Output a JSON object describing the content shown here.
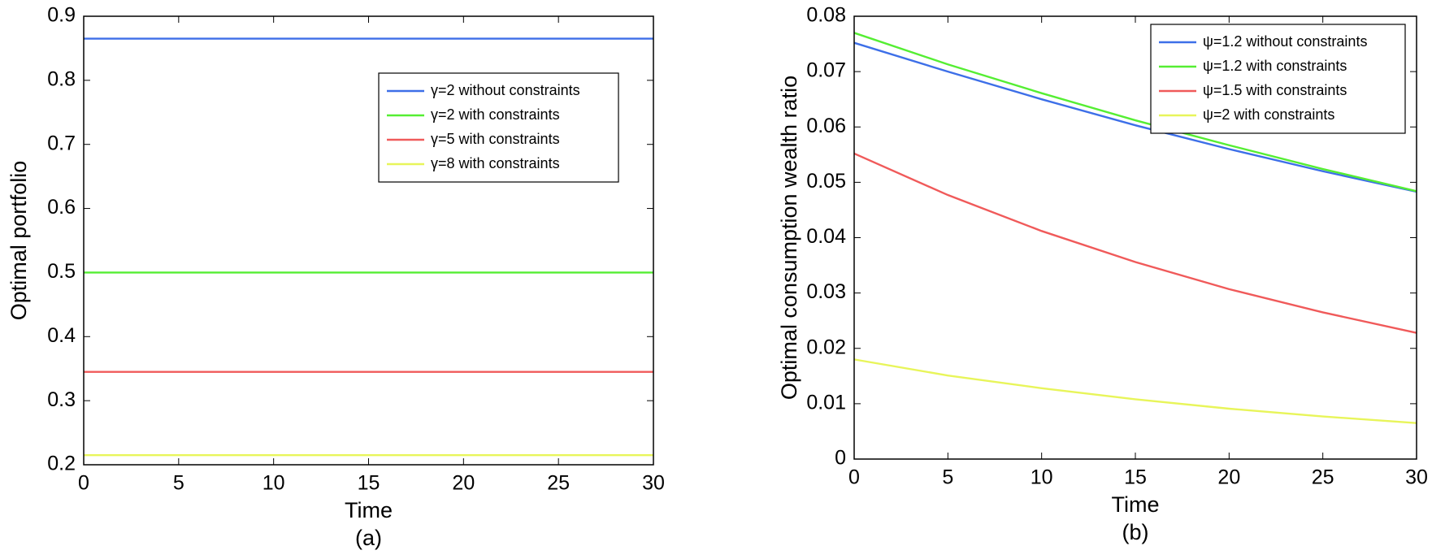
{
  "chart_data": [
    {
      "type": "line",
      "xlabel": "Time",
      "ylabel": "Optimal portfolio",
      "caption": "(a)",
      "x": [
        0,
        5,
        10,
        15,
        20,
        25,
        30
      ],
      "series": [
        {
          "name": "γ=2 without constraints",
          "color": "#3d6fe8",
          "values": [
            0.865,
            0.865,
            0.865,
            0.865,
            0.865,
            0.865,
            0.865
          ]
        },
        {
          "name": "γ=2 with constraints",
          "color": "#55ee33",
          "values": [
            0.5,
            0.5,
            0.5,
            0.5,
            0.5,
            0.5,
            0.5
          ]
        },
        {
          "name": "γ=5 with constraints",
          "color": "#f05a5a",
          "values": [
            0.345,
            0.345,
            0.345,
            0.345,
            0.345,
            0.345,
            0.345
          ]
        },
        {
          "name": "γ=8 with constraints",
          "color": "#e8f55a",
          "values": [
            0.215,
            0.215,
            0.215,
            0.215,
            0.215,
            0.215,
            0.215
          ]
        }
      ],
      "xlim": [
        0,
        30
      ],
      "xticks": [
        0,
        5,
        10,
        15,
        20,
        25,
        30
      ],
      "ylim": [
        0.2,
        0.9
      ],
      "yticks": [
        0.2,
        0.3,
        0.4,
        0.5,
        0.6,
        0.7,
        0.8,
        0.9
      ],
      "legend": "upper right"
    },
    {
      "type": "line",
      "xlabel": "Time",
      "ylabel": "Optimal consumption wealth ratio",
      "caption": "(b)",
      "x": [
        0,
        5,
        10,
        15,
        20,
        25,
        30
      ],
      "series": [
        {
          "name": "ψ=1.2 without constraints",
          "color": "#3d6fe8",
          "values": [
            0.0752,
            0.07,
            0.065,
            0.0603,
            0.056,
            0.052,
            0.0483
          ]
        },
        {
          "name": "ψ=1.2 with constraints",
          "color": "#55ee33",
          "values": [
            0.077,
            0.0713,
            0.0661,
            0.0612,
            0.0567,
            0.0524,
            0.0484
          ]
        },
        {
          "name": "ψ=1.5 with constraints",
          "color": "#f05a5a",
          "values": [
            0.0552,
            0.0477,
            0.0412,
            0.0356,
            0.0307,
            0.0265,
            0.0228
          ]
        },
        {
          "name": "ψ=2 with constraints",
          "color": "#e8f55a",
          "values": [
            0.018,
            0.0151,
            0.0128,
            0.0108,
            0.0091,
            0.0077,
            0.0065
          ]
        }
      ],
      "xlim": [
        0,
        30
      ],
      "xticks": [
        0,
        5,
        10,
        15,
        20,
        25,
        30
      ],
      "ylim": [
        0,
        0.08
      ],
      "yticks": [
        0,
        0.01,
        0.02,
        0.03,
        0.04,
        0.05,
        0.06,
        0.07,
        0.08
      ],
      "legend": "upper right"
    }
  ]
}
